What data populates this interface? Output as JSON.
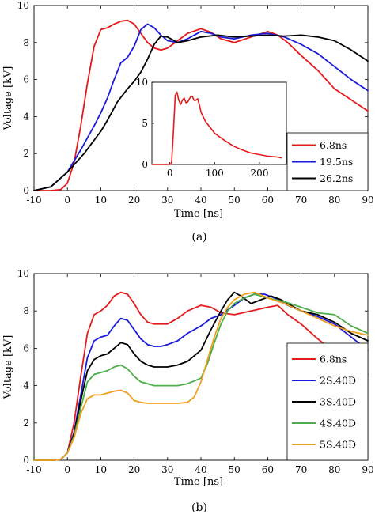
{
  "chart_data": [
    {
      "id": "a",
      "type": "line",
      "caption": "(a)",
      "xlabel": "Time [ns]",
      "ylabel": "Voltage [kV]",
      "xlim": [
        -10,
        90
      ],
      "ylim": [
        0,
        10
      ],
      "xticks": [
        "-10",
        "0",
        "10",
        "20",
        "30",
        "40",
        "50",
        "60",
        "70",
        "80",
        "90"
      ],
      "yticks": [
        "0",
        "2",
        "4",
        "6",
        "8",
        "10"
      ],
      "legend_position": "bottom-right",
      "series": [
        {
          "name": "6.8ns",
          "color": "#e41a1c",
          "x": [
            -10,
            -5,
            -2,
            0,
            2,
            4,
            6,
            8,
            10,
            12,
            14,
            16,
            18,
            20,
            22,
            24,
            26,
            28,
            30,
            33,
            36,
            40,
            43,
            46,
            50,
            55,
            60,
            63,
            66,
            70,
            75,
            80,
            85,
            90
          ],
          "y": [
            0,
            0,
            0.05,
            0.4,
            1.5,
            3.5,
            5.8,
            7.8,
            8.7,
            8.8,
            9.0,
            9.15,
            9.2,
            9.0,
            8.5,
            8.0,
            7.7,
            7.6,
            7.7,
            8.1,
            8.5,
            8.75,
            8.55,
            8.2,
            8.0,
            8.3,
            8.6,
            8.4,
            8.0,
            7.3,
            6.5,
            5.5,
            4.9,
            4.3
          ]
        },
        {
          "name": "19.5ns",
          "color": "#1a1adc",
          "x": [
            -10,
            -5,
            0,
            4,
            8,
            10,
            12,
            14,
            16,
            18,
            20,
            22,
            24,
            26,
            28,
            30,
            33,
            36,
            40,
            43,
            46,
            50,
            55,
            60,
            65,
            70,
            75,
            80,
            85,
            90
          ],
          "y": [
            0,
            0.2,
            1.0,
            2.2,
            3.5,
            4.2,
            5.0,
            6.0,
            6.9,
            7.2,
            7.8,
            8.7,
            9.0,
            8.8,
            8.4,
            8.1,
            8.0,
            8.2,
            8.6,
            8.5,
            8.3,
            8.2,
            8.4,
            8.5,
            8.3,
            7.9,
            7.4,
            6.7,
            6.0,
            5.4
          ]
        },
        {
          "name": "26.2ns",
          "color": "#000000",
          "x": [
            -10,
            -5,
            0,
            5,
            10,
            12,
            15,
            18,
            20,
            22,
            24,
            26,
            28,
            30,
            33,
            36,
            40,
            45,
            50,
            55,
            60,
            65,
            70,
            75,
            80,
            85,
            90
          ],
          "y": [
            0,
            0.2,
            1.0,
            2.0,
            3.2,
            3.8,
            4.8,
            5.5,
            5.9,
            6.4,
            7.1,
            7.9,
            8.35,
            8.3,
            8.0,
            8.1,
            8.3,
            8.4,
            8.3,
            8.35,
            8.4,
            8.35,
            8.4,
            8.3,
            8.1,
            7.6,
            7.0
          ]
        }
      ],
      "inset": {
        "type": "line",
        "xlim": [
          -40,
          260
        ],
        "ylim": [
          0,
          10
        ],
        "xticks": [
          "0",
          "100",
          "200"
        ],
        "yticks": [
          "0",
          "5",
          "10"
        ],
        "series": [
          {
            "name": "",
            "color": "#e41a1c",
            "x": [
              -40,
              0,
              4,
              8,
              12,
              16,
              20,
              24,
              28,
              32,
              36,
              40,
              46,
              50,
              54,
              58,
              62,
              66,
              70,
              80,
              90,
              100,
              120,
              140,
              160,
              180,
              200,
              220,
              240,
              250
            ],
            "y": [
              0,
              0,
              0.2,
              4,
              8.4,
              8.8,
              7.8,
              7.3,
              7.8,
              8.1,
              7.5,
              7.6,
              8.2,
              8.3,
              7.8,
              7.8,
              8.0,
              7.2,
              6.3,
              5.2,
              4.5,
              3.8,
              3.0,
              2.3,
              1.8,
              1.4,
              1.2,
              1.0,
              0.9,
              0.8
            ]
          }
        ]
      }
    },
    {
      "id": "b",
      "type": "line",
      "caption": "(b)",
      "xlabel": "Time [ns]",
      "ylabel": "Voltage [kV]",
      "xlim": [
        -10,
        90
      ],
      "ylim": [
        0,
        10
      ],
      "xticks": [
        "-10",
        "0",
        "10",
        "20",
        "30",
        "40",
        "50",
        "60",
        "70",
        "80",
        "90"
      ],
      "yticks": [
        "0",
        "2",
        "4",
        "6",
        "8",
        "10"
      ],
      "legend_position": "bottom-right",
      "series": [
        {
          "name": "6.8ns",
          "color": "#e41a1c",
          "x": [
            -10,
            -4,
            -2,
            0,
            2,
            4,
            6,
            8,
            10,
            12,
            14,
            16,
            18,
            20,
            22,
            24,
            26,
            28,
            30,
            33,
            36,
            40,
            43,
            46,
            50,
            55,
            60,
            63,
            66,
            70,
            75,
            80,
            85,
            90
          ],
          "y": [
            0,
            0,
            0.05,
            0.4,
            2.0,
            4.5,
            6.8,
            7.8,
            8.0,
            8.3,
            8.8,
            9.0,
            8.9,
            8.4,
            7.8,
            7.4,
            7.3,
            7.3,
            7.3,
            7.6,
            8.0,
            8.3,
            8.2,
            7.9,
            7.8,
            8.0,
            8.2,
            8.3,
            7.8,
            7.3,
            6.5,
            5.8,
            5.2,
            4.6
          ]
        },
        {
          "name": "2S.40D",
          "color": "#1a1adc",
          "x": [
            -10,
            -4,
            -2,
            0,
            2,
            4,
            6,
            8,
            10,
            12,
            14,
            16,
            18,
            20,
            22,
            24,
            26,
            28,
            30,
            33,
            36,
            40,
            43,
            46,
            50,
            53,
            56,
            59,
            62,
            66,
            70,
            75,
            80,
            85,
            90
          ],
          "y": [
            0,
            0,
            0.05,
            0.4,
            1.5,
            3.5,
            5.5,
            6.4,
            6.6,
            6.7,
            7.2,
            7.6,
            7.5,
            7.0,
            6.5,
            6.2,
            6.1,
            6.1,
            6.2,
            6.4,
            6.8,
            7.2,
            7.6,
            7.8,
            8.3,
            8.7,
            8.9,
            8.9,
            8.7,
            8.3,
            8.0,
            7.7,
            7.3,
            6.6,
            5.9
          ]
        },
        {
          "name": "3S.40D",
          "color": "#000000",
          "x": [
            -10,
            -4,
            -2,
            0,
            2,
            4,
            6,
            8,
            10,
            12,
            14,
            16,
            18,
            20,
            22,
            24,
            26,
            28,
            30,
            33,
            36,
            40,
            43,
            46,
            48,
            50,
            52,
            55,
            58,
            61,
            64,
            67,
            70,
            75,
            80,
            85,
            90
          ],
          "y": [
            0,
            0,
            0.05,
            0.4,
            1.4,
            3.2,
            4.8,
            5.4,
            5.6,
            5.7,
            6.0,
            6.3,
            6.2,
            5.7,
            5.3,
            5.1,
            5.0,
            5.0,
            5.0,
            5.1,
            5.3,
            5.9,
            7.0,
            8.0,
            8.6,
            9.0,
            8.8,
            8.4,
            8.6,
            8.8,
            8.6,
            8.3,
            8.0,
            7.8,
            7.4,
            6.8,
            6.4
          ]
        },
        {
          "name": "4S.40D",
          "color": "#4daf4a",
          "x": [
            -10,
            -4,
            -2,
            0,
            2,
            4,
            6,
            8,
            10,
            12,
            14,
            16,
            18,
            20,
            22,
            24,
            26,
            28,
            30,
            33,
            36,
            40,
            42,
            44,
            46,
            48,
            50,
            53,
            56,
            60,
            65,
            70,
            75,
            80,
            85,
            90
          ],
          "y": [
            0,
            0,
            0.05,
            0.4,
            1.3,
            2.8,
            4.2,
            4.6,
            4.7,
            4.8,
            5.0,
            5.1,
            4.9,
            4.5,
            4.2,
            4.1,
            4.0,
            4.0,
            4.0,
            4.0,
            4.1,
            4.4,
            5.2,
            6.3,
            7.3,
            8.0,
            8.4,
            8.7,
            8.9,
            8.7,
            8.5,
            8.2,
            7.9,
            7.8,
            7.2,
            6.8
          ]
        },
        {
          "name": "5S.40D",
          "color": "#f0a020",
          "x": [
            -10,
            -4,
            -2,
            0,
            2,
            4,
            6,
            8,
            10,
            12,
            14,
            16,
            18,
            20,
            22,
            24,
            26,
            28,
            30,
            33,
            36,
            38,
            40,
            42,
            44,
            46,
            48,
            50,
            53,
            56,
            60,
            65,
            70,
            75,
            80,
            85,
            90
          ],
          "y": [
            0,
            0,
            0.05,
            0.4,
            1.2,
            2.5,
            3.3,
            3.5,
            3.5,
            3.6,
            3.7,
            3.75,
            3.6,
            3.2,
            3.1,
            3.05,
            3.05,
            3.05,
            3.05,
            3.05,
            3.1,
            3.4,
            4.2,
            5.4,
            6.6,
            7.6,
            8.2,
            8.6,
            8.9,
            9.0,
            8.7,
            8.4,
            8.0,
            7.6,
            7.2,
            6.9,
            6.7
          ]
        }
      ]
    }
  ]
}
